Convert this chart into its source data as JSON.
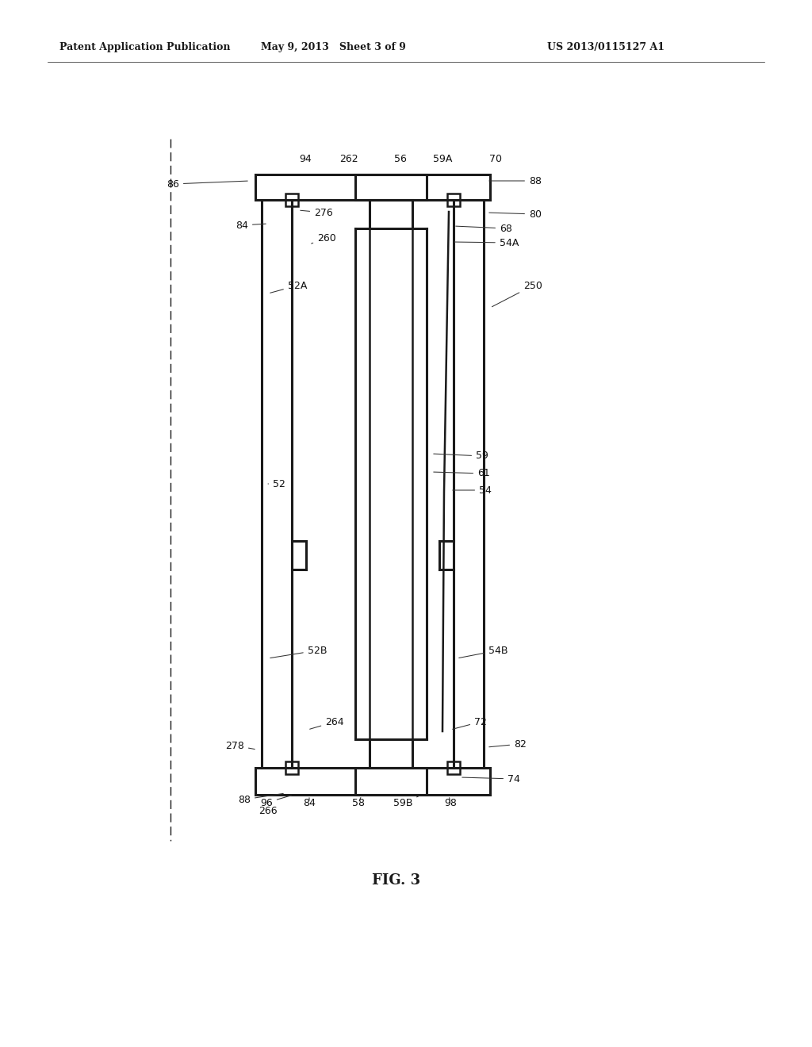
{
  "bg_color": "#ffffff",
  "line_color": "#1a1a1a",
  "header_text": "Patent Application Publication",
  "header_date": "May 9, 2013   Sheet 3 of 9",
  "header_patent": "US 2013/0115127 A1",
  "fig_label": "FIG. 3"
}
